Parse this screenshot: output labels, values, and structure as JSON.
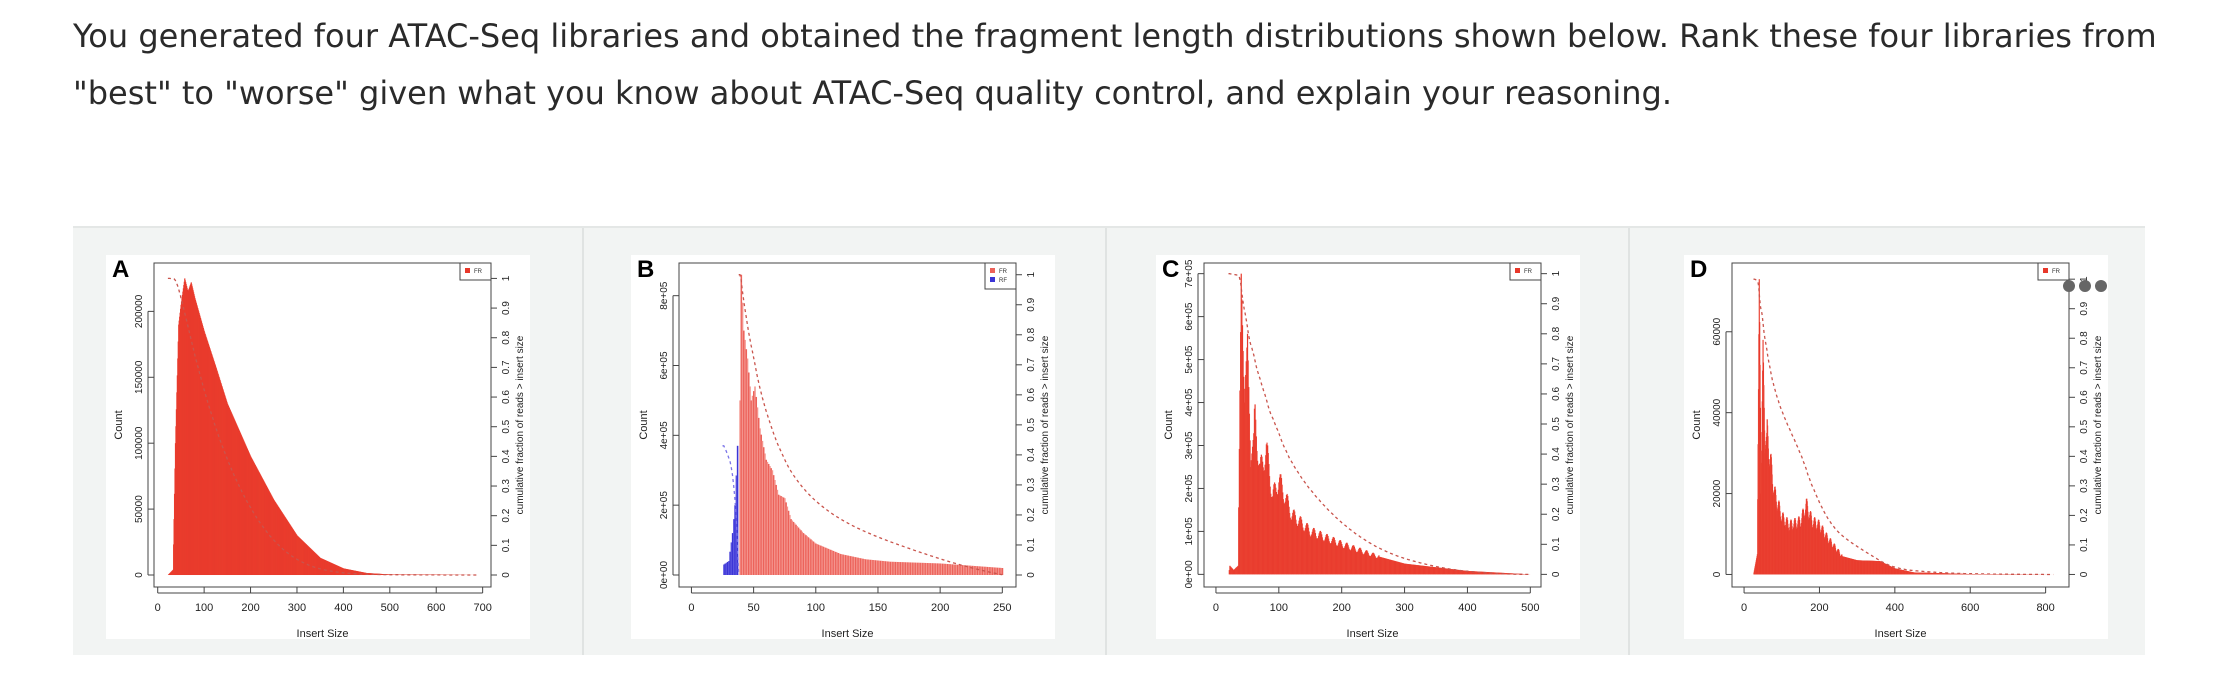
{
  "question": "You generated four ATAC-Seq libraries and obtained the fragment length distributions shown below. Rank these four libraries from \"best\" to \"worse\" given what you know about ATAC-Seq quality control, and explain your reasoning.",
  "more_icon": "more-options-icon",
  "chart_data": [
    {
      "panel_label": "A",
      "type": "bar",
      "xlabel": "Insert Size",
      "ylabel": "Count",
      "y2label": "cumulative fraction of reads > insert size",
      "xlim": [
        -8,
        718
      ],
      "ylim": [
        -9100,
        236700
      ],
      "xticks": [
        0,
        100,
        200,
        300,
        400,
        500,
        600,
        700
      ],
      "yticks": [
        0,
        50000,
        100000,
        150000,
        200000
      ],
      "ytick_labels": [
        "0",
        "50000",
        "100000",
        "150000",
        "200000"
      ],
      "y2ticks": [
        0,
        0.1,
        0.2,
        0.3,
        0.4,
        0.5,
        0.6,
        0.7,
        0.8,
        0.9,
        1
      ],
      "legend": "top-right",
      "periodic": false,
      "series": [
        {
          "name": "FR",
          "color": "#e8382a",
          "color2": "#ea3f30",
          "points": [
            [
              22,
              0
            ],
            [
              33,
              4000
            ],
            [
              38,
              100000
            ],
            [
              45,
              190000
            ],
            [
              50,
              205000
            ],
            [
              58,
              225000
            ],
            [
              65,
              215000
            ],
            [
              72,
              222000
            ],
            [
              80,
              210000
            ],
            [
              100,
              185000
            ],
            [
              125,
              158000
            ],
            [
              150,
              130000
            ],
            [
              175,
              110000
            ],
            [
              200,
              90000
            ],
            [
              250,
              57000
            ],
            [
              300,
              30000
            ],
            [
              350,
              13000
            ],
            [
              400,
              5000
            ],
            [
              450,
              1500
            ],
            [
              500,
              400
            ],
            [
              690,
              0
            ]
          ]
        }
      ]
    },
    {
      "panel_label": "B",
      "type": "bar",
      "xlabel": "Insert Size",
      "ylabel": "Count",
      "y2label": "cumulative fraction of reads > insert size",
      "xlim": [
        -10,
        261
      ],
      "ylim": [
        -34400,
        893600
      ],
      "xticks": [
        0,
        50,
        100,
        150,
        200,
        250
      ],
      "yticks": [
        0,
        200000,
        400000,
        600000,
        800000
      ],
      "ytick_labels": [
        "0e+00",
        "2e+05",
        "4e+05",
        "6e+05",
        "8e+05"
      ],
      "y2ticks": [
        0,
        0.1,
        0.2,
        0.3,
        0.4,
        0.5,
        0.6,
        0.7,
        0.8,
        0.9,
        1
      ],
      "legend": "top-right",
      "periodic": false,
      "series": [
        {
          "name": "FR",
          "color": "#ec625a",
          "color2": "#f4948d",
          "points": [
            [
              38,
              0
            ],
            [
              39,
              500000
            ],
            [
              40,
              860000
            ],
            [
              42,
              700000
            ],
            [
              45,
              620000
            ],
            [
              48,
              500000
            ],
            [
              51,
              540000
            ],
            [
              55,
              420000
            ],
            [
              60,
              330000
            ],
            [
              65,
              300000
            ],
            [
              70,
              230000
            ],
            [
              75,
              220000
            ],
            [
              80,
              160000
            ],
            [
              90,
              120000
            ],
            [
              100,
              90000
            ],
            [
              110,
              75000
            ],
            [
              120,
              60000
            ],
            [
              140,
              45000
            ],
            [
              160,
              38000
            ],
            [
              200,
              33000
            ],
            [
              250,
              20000
            ]
          ]
        },
        {
          "name": "RF",
          "color": "#3b34d6",
          "color2": "#5a55e0",
          "points": [
            [
              25,
              0
            ],
            [
              26,
              30000
            ],
            [
              30,
              40000
            ],
            [
              33,
              120000
            ],
            [
              35,
              200000
            ],
            [
              37,
              370000
            ],
            [
              38,
              0
            ]
          ]
        }
      ]
    },
    {
      "panel_label": "C",
      "type": "bar",
      "xlabel": "Insert Size",
      "ylabel": "Count",
      "y2label": "cumulative fraction of reads > insert size",
      "xlim": [
        -19,
        517
      ],
      "ylim": [
        -29400,
        724800
      ],
      "xticks": [
        0,
        100,
        200,
        300,
        400,
        500
      ],
      "yticks": [
        0,
        100000,
        200000,
        300000,
        400000,
        500000,
        600000,
        700000
      ],
      "ytick_labels": [
        "0e+00",
        "1e+05",
        "2e+05",
        "3e+05",
        "4e+05",
        "5e+05",
        "6e+05",
        "7e+05"
      ],
      "y2ticks": [
        0,
        0.1,
        0.2,
        0.3,
        0.4,
        0.5,
        0.6,
        0.7,
        0.8,
        0.9,
        1
      ],
      "legend": "top-right",
      "periodic": true,
      "series": [
        {
          "name": "FR",
          "color": "#e8382a",
          "color2": "#eb4536",
          "points": [
            [
              20,
              0
            ],
            [
              22,
              20000
            ],
            [
              28,
              10000
            ],
            [
              35,
              20000
            ],
            [
              40,
              700000
            ],
            [
              45,
              400000
            ],
            [
              50,
              560000
            ],
            [
              55,
              250000
            ],
            [
              62,
              360000
            ],
            [
              70,
              240000
            ],
            [
              80,
              290000
            ],
            [
              90,
              180000
            ],
            [
              100,
              220000
            ],
            [
              120,
              140000
            ],
            [
              150,
              100000
            ],
            [
              200,
              70000
            ],
            [
              250,
              45000
            ],
            [
              300,
              25000
            ],
            [
              400,
              8000
            ],
            [
              500,
              0
            ]
          ]
        }
      ]
    },
    {
      "panel_label": "D",
      "type": "bar",
      "xlabel": "Insert Size",
      "ylabel": "Count",
      "y2label": "cumulative fraction of reads > insert size",
      "xlim": [
        -32,
        862
      ],
      "ylim": [
        -3100,
        77000
      ],
      "xticks": [
        0,
        200,
        400,
        600,
        800
      ],
      "yticks": [
        0,
        20000,
        40000,
        60000
      ],
      "ytick_labels": [
        "0",
        "20000",
        "40000",
        "60000"
      ],
      "y2ticks": [
        0,
        0.1,
        0.2,
        0.3,
        0.4,
        0.5,
        0.6,
        0.7,
        0.8,
        0.9,
        1
      ],
      "legend": "top-right",
      "periodic": true,
      "series": [
        {
          "name": "FR",
          "color": "#e8382a",
          "color2": "#eb4536",
          "points": [
            [
              25,
              0
            ],
            [
              35,
              5000
            ],
            [
              40,
              73000
            ],
            [
              45,
              20000
            ],
            [
              50,
              58000
            ],
            [
              55,
              30000
            ],
            [
              60,
              35000
            ],
            [
              80,
              20000
            ],
            [
              100,
              14000
            ],
            [
              120,
              12000
            ],
            [
              150,
              13000
            ],
            [
              165,
              17000
            ],
            [
              180,
              13000
            ],
            [
              200,
              12000
            ],
            [
              220,
              9000
            ],
            [
              260,
              4500
            ],
            [
              300,
              3500
            ],
            [
              360,
              3300
            ],
            [
              400,
              1500
            ],
            [
              450,
              500
            ],
            [
              600,
              100
            ],
            [
              820,
              0
            ]
          ]
        }
      ]
    }
  ]
}
